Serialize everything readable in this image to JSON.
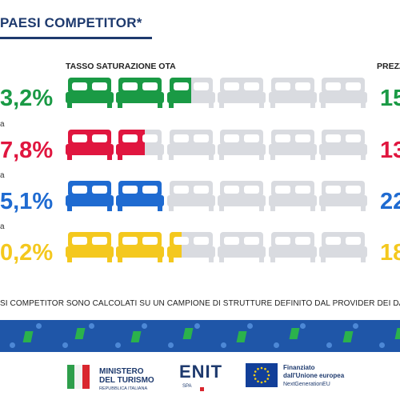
{
  "header": {
    "title": "PAESI COMPETITOR*"
  },
  "columns": {
    "ota_label": "TASSO SATURAZIONE OTA",
    "price_label": "PREZZ"
  },
  "rows": [
    {
      "small": "",
      "pct": "3,2%",
      "price": "15",
      "color": "#1a9a45",
      "fill_beds": 2.5
    },
    {
      "small": "a",
      "pct": "7,8%",
      "price": "13",
      "color": "#e0163f",
      "fill_beds": 1.6
    },
    {
      "small": "a",
      "pct": "5,1%",
      "price": "22",
      "color": "#1f6bd1",
      "fill_beds": 2.0
    },
    {
      "small": "a",
      "pct": "0,2%",
      "price": "18",
      "color": "#f4c81e",
      "fill_beds": 2.3
    }
  ],
  "footnote": "SI COMPETITOR SONO CALCOLATI SU UN CAMPIONE DI STRUTTURE DEFINITO DAL PROVIDER DEI DATI",
  "logos": {
    "ministero_line1": "MINISTERO",
    "ministero_line2": "DEL TURISMO",
    "ministero_line3": "REPUBBLICA ITALIANA",
    "enit": "ENIT",
    "enit_sub": "SPA",
    "eu_line1": "Finanziato",
    "eu_line2": "dall'Unione europea",
    "eu_line3": "NextGenerationEU"
  },
  "colors": {
    "empty_bed": "#d9dbe0",
    "band": "#1f56a8",
    "title": "#1e3a6e"
  }
}
